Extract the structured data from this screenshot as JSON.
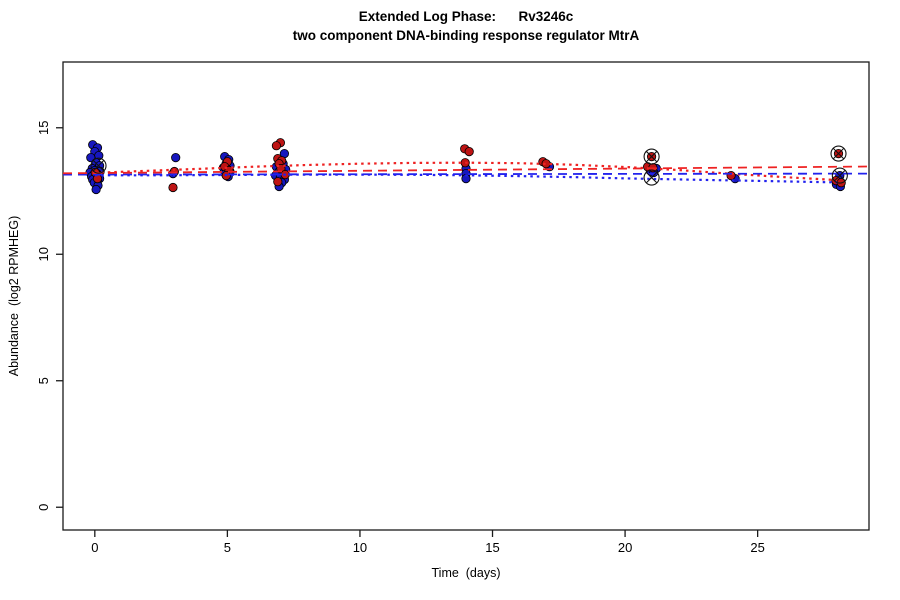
{
  "chart_data": {
    "type": "scatter",
    "title": "Extended Log Phase:      Rv3246c",
    "subtitle": "two component DNA-binding response regulator MtrA",
    "xlabel": "Time  (days)",
    "ylabel": "Abundance  (log2 RPMHEG)",
    "xlim": [
      -1.2,
      29.2
    ],
    "ylim": [
      -0.9,
      17.6
    ],
    "xticks": [
      0,
      5,
      10,
      15,
      20,
      25
    ],
    "yticks": [
      0,
      5,
      10,
      15
    ],
    "grid": false,
    "legend": "none",
    "colors": {
      "blue_points": "#1717BE",
      "red_points": "#BE1414",
      "blue_line": "#2222EE",
      "red_line": "#EE2222",
      "flag_symbol": "#111111",
      "axis": "#1a1a1a"
    },
    "series": [
      {
        "name": "blue",
        "color": "#1717BE",
        "marker": "circle",
        "points": [
          [
            -0.08,
            14.33
          ],
          [
            0.1,
            14.21
          ],
          [
            0.0,
            14.06
          ],
          [
            0.15,
            13.9
          ],
          [
            -0.15,
            13.82
          ],
          [
            0.05,
            13.62
          ],
          [
            0.18,
            13.5
          ],
          [
            -0.1,
            13.39
          ],
          [
            0.0,
            13.31
          ],
          [
            0.2,
            13.27
          ],
          [
            -0.18,
            13.23
          ],
          [
            0.08,
            13.19
          ],
          [
            -0.04,
            13.15
          ],
          [
            0.15,
            13.11
          ],
          [
            -0.12,
            13.07
          ],
          [
            0.04,
            13.03
          ],
          [
            0.18,
            12.99
          ],
          [
            -0.08,
            12.95
          ],
          [
            0.1,
            12.91
          ],
          [
            -0.02,
            12.83
          ],
          [
            0.12,
            12.72
          ],
          [
            0.05,
            12.56
          ],
          [
            3.05,
            13.82
          ],
          [
            2.95,
            13.19
          ],
          [
            4.9,
            13.86
          ],
          [
            5.05,
            13.74
          ],
          [
            4.95,
            13.58
          ],
          [
            5.1,
            13.5
          ],
          [
            4.85,
            13.42
          ],
          [
            5.0,
            13.35
          ],
          [
            5.1,
            13.27
          ],
          [
            4.92,
            13.19
          ],
          [
            5.03,
            13.07
          ],
          [
            7.15,
            13.98
          ],
          [
            7.1,
            13.58
          ],
          [
            6.85,
            13.46
          ],
          [
            7.2,
            13.35
          ],
          [
            6.95,
            13.27
          ],
          [
            7.1,
            13.19
          ],
          [
            6.82,
            13.11
          ],
          [
            7.0,
            13.03
          ],
          [
            7.15,
            12.95
          ],
          [
            7.05,
            12.83
          ],
          [
            6.95,
            12.68
          ],
          [
            14.0,
            13.39
          ],
          [
            14.0,
            13.19
          ],
          [
            14.0,
            12.99
          ],
          [
            17.15,
            13.46
          ],
          [
            21.18,
            13.39
          ],
          [
            20.95,
            13.31
          ],
          [
            21.08,
            13.23
          ],
          [
            24.15,
            12.99
          ],
          [
            28.1,
            13.11
          ],
          [
            27.97,
            12.76
          ],
          [
            28.12,
            12.68
          ]
        ]
      },
      {
        "name": "red",
        "color": "#BE1414",
        "marker": "circle",
        "points": [
          [
            0.02,
            13.23
          ],
          [
            0.1,
            12.99
          ],
          [
            3.0,
            13.27
          ],
          [
            2.95,
            12.64
          ],
          [
            5.0,
            13.66
          ],
          [
            4.9,
            13.46
          ],
          [
            5.06,
            13.31
          ],
          [
            4.96,
            13.11
          ],
          [
            7.0,
            14.41
          ],
          [
            6.85,
            14.29
          ],
          [
            6.9,
            13.78
          ],
          [
            7.05,
            13.7
          ],
          [
            6.95,
            13.58
          ],
          [
            7.02,
            13.39
          ],
          [
            7.18,
            13.15
          ],
          [
            6.9,
            12.87
          ],
          [
            13.95,
            14.17
          ],
          [
            14.12,
            14.06
          ],
          [
            13.97,
            13.62
          ],
          [
            16.9,
            13.66
          ],
          [
            17.02,
            13.58
          ],
          [
            21.0,
            13.86
          ],
          [
            20.85,
            13.46
          ],
          [
            21.05,
            13.42
          ],
          [
            24.0,
            13.11
          ],
          [
            28.05,
            13.98
          ],
          [
            27.95,
            12.91
          ],
          [
            28.15,
            12.83
          ]
        ]
      }
    ],
    "flagged_points": [
      [
        0.14,
        13.5
      ],
      [
        21.0,
        13.86
      ],
      [
        21.0,
        13.03
      ],
      [
        28.05,
        13.98
      ],
      [
        28.1,
        13.11
      ]
    ],
    "trend_lines": [
      {
        "name": "red-loess-dotted",
        "color": "#EE2222",
        "dash": "2.5 4",
        "width": 2.2,
        "points": [
          [
            0,
            13.22
          ],
          [
            2,
            13.3
          ],
          [
            4,
            13.38
          ],
          [
            6,
            13.46
          ],
          [
            8,
            13.53
          ],
          [
            10,
            13.58
          ],
          [
            12,
            13.61
          ],
          [
            14,
            13.62
          ],
          [
            16,
            13.6
          ],
          [
            18,
            13.54
          ],
          [
            20,
            13.45
          ],
          [
            22,
            13.33
          ],
          [
            24,
            13.18
          ],
          [
            26,
            13.05
          ],
          [
            28,
            12.93
          ]
        ]
      },
      {
        "name": "blue-loess-dotted",
        "color": "#2222EE",
        "dash": "2.5 4",
        "width": 2.2,
        "points": [
          [
            0,
            13.12
          ],
          [
            2,
            13.12
          ],
          [
            4,
            13.13
          ],
          [
            6,
            13.14
          ],
          [
            8,
            13.15
          ],
          [
            10,
            13.15
          ],
          [
            12,
            13.14
          ],
          [
            14,
            13.12
          ],
          [
            16,
            13.09
          ],
          [
            18,
            13.05
          ],
          [
            20,
            13.0
          ],
          [
            22,
            12.96
          ],
          [
            24,
            12.92
          ],
          [
            26,
            12.88
          ],
          [
            28,
            12.84
          ]
        ]
      },
      {
        "name": "blue-linear-dashed",
        "color": "#2222EE",
        "dash": "9 6",
        "width": 1.8,
        "points": [
          [
            -1.2,
            13.15
          ],
          [
            29.2,
            13.19
          ]
        ]
      },
      {
        "name": "red-linear-dashed",
        "color": "#EE2222",
        "dash": "9 6",
        "width": 1.8,
        "points": [
          [
            -1.2,
            13.2
          ],
          [
            29.2,
            13.47
          ]
        ]
      }
    ]
  }
}
